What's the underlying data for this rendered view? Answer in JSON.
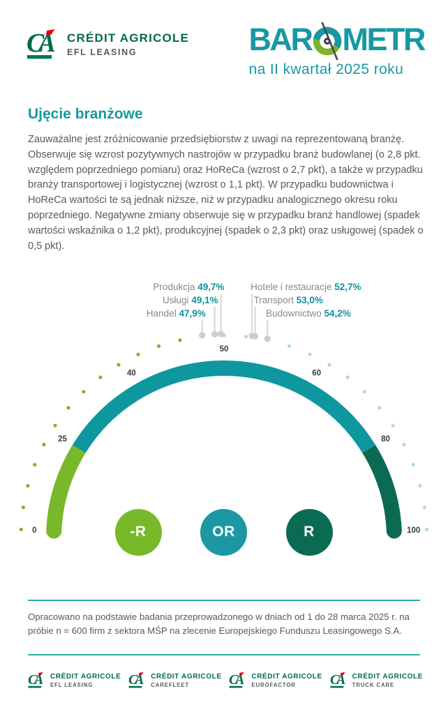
{
  "header": {
    "brand": {
      "name": "CRÉDIT AGRICOLE",
      "sub": "EFL LEASING"
    },
    "title": {
      "full": "BAROMETR",
      "left": "BAR",
      "right": "METR",
      "subtitle": "na II kwartał 2025 roku"
    }
  },
  "section": {
    "heading": "Ujęcie branżowe",
    "paragraph": "Zauważalne jest zróżnicowanie przedsiębiorstw z uwagi na reprezentowaną branżę. Obserwuje się wzrost pozytywnych nastrojów w przypadku branż budowlanej (o 2,8 pkt. względem poprzedniego pomiaru) oraz HoReCa (wzrost o 2,7 pkt), a także w przypadku branży transportowej i logistycznej (wzrost o 1,1 pkt). W przypadku budownictwa i HoReCa wartości te są jednak niższe, niż w przypadku analogicznego okresu roku poprzedniego. Negatywne zmiany obserwuje się w przypadku branż handlowej (spadek wartości wskaźnika o 1,2 pkt), produkcyjnej (spadek o 2,3 pkt) oraz usługowej (spadek o 0,5 pkt)."
  },
  "chart_data": {
    "type": "gauge",
    "scale_min": 0,
    "scale_max": 100,
    "scale_ticks": [
      0,
      25,
      40,
      50,
      60,
      80,
      100
    ],
    "series": [
      {
        "name": "Produkcja",
        "value": 49.7,
        "display": "49,7%",
        "side": "left",
        "row": 1
      },
      {
        "name": "Usługi",
        "value": 49.1,
        "display": "49,1%",
        "side": "left",
        "row": 2
      },
      {
        "name": "Handel",
        "value": 47.9,
        "display": "47,9%",
        "side": "left",
        "row": 3
      },
      {
        "name": "Hotele i restauracje",
        "value": 52.7,
        "display": "52,7%",
        "side": "right",
        "row": 1
      },
      {
        "name": "Transport",
        "value": 53.0,
        "display": "53,0%",
        "side": "right",
        "row": 2
      },
      {
        "name": "Budownictwo",
        "value": 54.2,
        "display": "54,2%",
        "side": "right",
        "row": 3
      }
    ],
    "arc_segments": [
      {
        "from": 0,
        "to": 25,
        "color": "#79b829"
      },
      {
        "from": 25,
        "to": 80,
        "color": "#0f97a0"
      },
      {
        "from": 80,
        "to": 100,
        "color": "#0b6b52"
      }
    ],
    "tick_colors": {
      "low": "#79b829",
      "high": "#abdce2"
    },
    "marker_color": "#cdcdcd",
    "stem_color": "#dcdcdc",
    "label_color": "#87888a",
    "value_color": "#11919b",
    "scale_label_color": "#3b3b3d",
    "legend": [
      {
        "label": "-R",
        "color": "#79b829"
      },
      {
        "label": "OR",
        "color": "#1b98a1"
      },
      {
        "label": "R",
        "color": "#0b6b52"
      }
    ]
  },
  "footer": {
    "note": "Opracowano na podstawie badania przeprowadzonego w dniach od 1 do 28 marca 2025 r. na próbie n = 600 firm z sektora MŚP na zlecenie Europejskiego Funduszu Leasingowego S.A.",
    "rule_color": "#2ea6ab"
  },
  "partner_logos": [
    {
      "name": "CRÉDIT AGRICOLE",
      "sub": "EFL LEASING"
    },
    {
      "name": "CRÉDIT AGRICOLE",
      "sub": "CAREFLEET"
    },
    {
      "name": "CRÉDIT AGRICOLE",
      "sub": "EUROFACTOR"
    },
    {
      "name": "CRÉDIT AGRICOLE",
      "sub": "TRUCK CARE"
    }
  ]
}
